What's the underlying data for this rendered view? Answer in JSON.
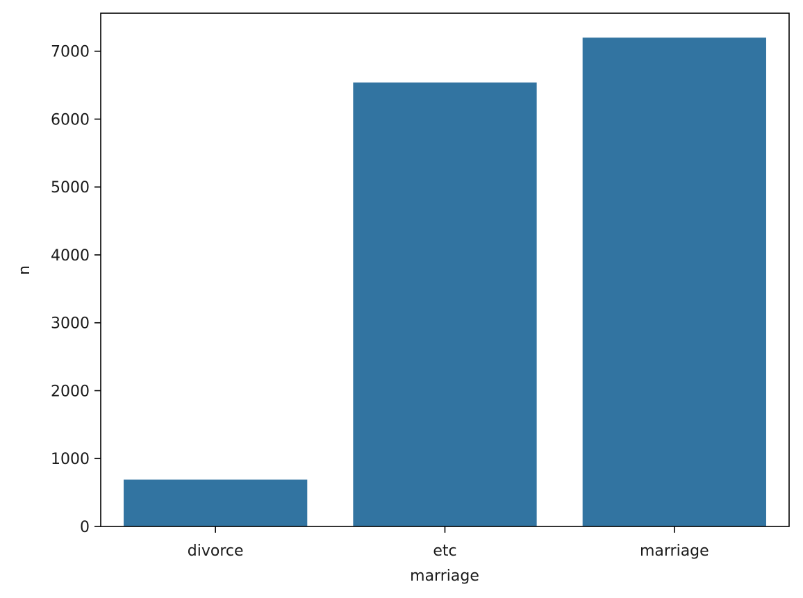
{
  "chart_data": {
    "type": "bar",
    "categories": [
      "divorce",
      "etc",
      "marriage"
    ],
    "values": [
      690,
      6540,
      7200
    ],
    "xlabel": "marriage",
    "ylabel": "n",
    "ylim": [
      0,
      7560
    ],
    "yticks": [
      0,
      1000,
      2000,
      3000,
      4000,
      5000,
      6000,
      7000
    ],
    "grid": false,
    "bar_color": "#3274a1"
  }
}
